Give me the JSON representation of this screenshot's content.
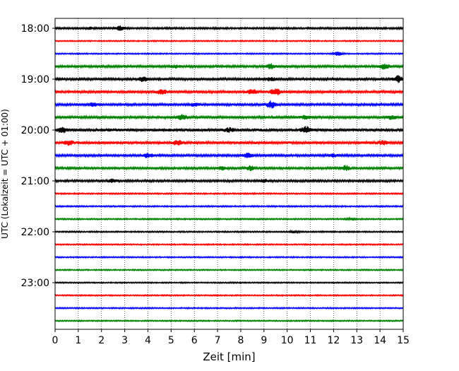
{
  "chart_data": {
    "type": "line",
    "title": "",
    "xlabel": "Zeit  [min]",
    "ylabel": "UTC (Lokalzeit = UTC + 01:00)",
    "xlim": [
      0,
      15
    ],
    "x_ticks": [
      "0",
      "1",
      "2",
      "3",
      "4",
      "5",
      "6",
      "7",
      "8",
      "9",
      "10",
      "11",
      "12",
      "13",
      "14",
      "15"
    ],
    "y_ticks": [
      "18:00",
      "19:00",
      "20:00",
      "21:00",
      "22:00",
      "23:00"
    ],
    "x_grid": "dotted-vertical",
    "trace_colors": [
      "#000000",
      "#ff0000",
      "#0000ff",
      "#008000"
    ],
    "traces": [
      {
        "start": "18:00",
        "color": "#000000",
        "amplitude": 1.3,
        "bursts": [
          [
            2.8,
            3.0
          ],
          [
            1.5,
            1.3
          ]
        ]
      },
      {
        "start": "18:15",
        "color": "#ff0000",
        "amplitude": 0.9,
        "bursts": []
      },
      {
        "start": "18:30",
        "color": "#0000ff",
        "amplitude": 0.9,
        "bursts": [
          [
            12.2,
            2.5
          ]
        ]
      },
      {
        "start": "18:45",
        "color": "#008000",
        "amplitude": 1.6,
        "bursts": [
          [
            9.3,
            3.0
          ],
          [
            14.2,
            3.2
          ],
          [
            5.2,
            1.5
          ]
        ]
      },
      {
        "start": "19:00",
        "color": "#000000",
        "amplitude": 1.7,
        "bursts": [
          [
            3.8,
            2.5
          ],
          [
            14.8,
            4.2
          ],
          [
            9.3,
            2.0
          ]
        ]
      },
      {
        "start": "19:15",
        "color": "#ff0000",
        "amplitude": 1.8,
        "bursts": [
          [
            9.5,
            4.5
          ],
          [
            4.6,
            3.0
          ],
          [
            8.5,
            2.5
          ]
        ]
      },
      {
        "start": "19:30",
        "color": "#0000ff",
        "amplitude": 1.7,
        "bursts": [
          [
            9.3,
            4.5
          ],
          [
            1.6,
            2.5
          ],
          [
            6.0,
            1.8
          ]
        ]
      },
      {
        "start": "19:45",
        "color": "#008000",
        "amplitude": 1.7,
        "bursts": [
          [
            5.5,
            3.5
          ],
          [
            10.8,
            2.2
          ],
          [
            14.5,
            2.2
          ]
        ]
      },
      {
        "start": "20:00",
        "color": "#000000",
        "amplitude": 2.0,
        "bursts": [
          [
            10.8,
            4.2
          ],
          [
            0.3,
            3.0
          ],
          [
            7.5,
            2.2
          ]
        ]
      },
      {
        "start": "20:15",
        "color": "#ff0000",
        "amplitude": 1.9,
        "bursts": [
          [
            5.3,
            3.8
          ],
          [
            0.6,
            2.5
          ],
          [
            14.1,
            2.2
          ]
        ]
      },
      {
        "start": "20:30",
        "color": "#0000ff",
        "amplitude": 1.6,
        "bursts": [
          [
            4.0,
            3.2
          ],
          [
            8.3,
            3.2
          ],
          [
            12.0,
            1.8
          ]
        ]
      },
      {
        "start": "20:45",
        "color": "#008000",
        "amplitude": 1.5,
        "bursts": [
          [
            12.5,
            3.5
          ],
          [
            8.4,
            2.8
          ],
          [
            7.2,
            2.0
          ]
        ]
      },
      {
        "start": "21:00",
        "color": "#000000",
        "amplitude": 1.5,
        "bursts": [
          [
            2.5,
            2.2
          ],
          [
            9.0,
            1.8
          ]
        ]
      },
      {
        "start": "21:15",
        "color": "#ff0000",
        "amplitude": 1.0,
        "bursts": []
      },
      {
        "start": "21:30",
        "color": "#0000ff",
        "amplitude": 1.0,
        "bursts": []
      },
      {
        "start": "21:45",
        "color": "#008000",
        "amplitude": 1.0,
        "bursts": [
          [
            12.8,
            1.4
          ]
        ]
      },
      {
        "start": "22:00",
        "color": "#000000",
        "amplitude": 1.0,
        "bursts": [
          [
            10.3,
            1.3
          ]
        ]
      },
      {
        "start": "22:15",
        "color": "#ff0000",
        "amplitude": 0.9,
        "bursts": []
      },
      {
        "start": "22:30",
        "color": "#0000ff",
        "amplitude": 0.9,
        "bursts": []
      },
      {
        "start": "22:45",
        "color": "#008000",
        "amplitude": 0.9,
        "bursts": []
      },
      {
        "start": "23:00",
        "color": "#000000",
        "amplitude": 0.9,
        "bursts": []
      },
      {
        "start": "23:15",
        "color": "#ff0000",
        "amplitude": 0.9,
        "bursts": []
      },
      {
        "start": "23:30",
        "color": "#0000ff",
        "amplitude": 0.9,
        "bursts": []
      },
      {
        "start": "23:45",
        "color": "#008000",
        "amplitude": 0.9,
        "bursts": []
      }
    ]
  }
}
